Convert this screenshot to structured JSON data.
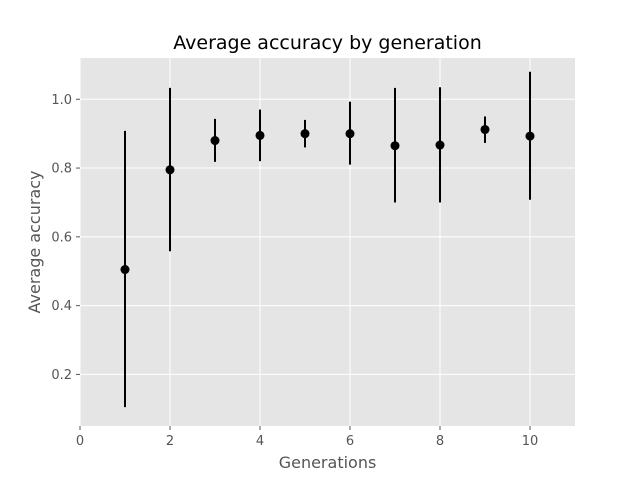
{
  "chart_data": {
    "type": "scatter",
    "title": "Average accuracy by generation",
    "xlabel": "Generations",
    "ylabel": "Average accuracy",
    "xlim": [
      0,
      11
    ],
    "ylim": [
      0.05,
      1.12
    ],
    "xticks": [
      0,
      2,
      4,
      6,
      8,
      10
    ],
    "yticks": [
      0.2,
      0.4,
      0.6,
      0.8,
      1.0
    ],
    "xtick_labels": [
      "0",
      "2",
      "4",
      "6",
      "8",
      "10"
    ],
    "ytick_labels": [
      "0.2",
      "0.4",
      "0.6",
      "0.8",
      "1.0"
    ],
    "grid": true,
    "series": [
      {
        "x": [
          1,
          2,
          3,
          4,
          5,
          6,
          7,
          8,
          9,
          10
        ],
        "y": [
          0.505,
          0.795,
          0.88,
          0.895,
          0.9,
          0.9,
          0.865,
          0.867,
          0.912,
          0.893
        ],
        "yerr_low": [
          0.105,
          0.558,
          0.818,
          0.82,
          0.86,
          0.81,
          0.7,
          0.7,
          0.873,
          0.708
        ],
        "yerr_high": [
          0.908,
          1.033,
          0.943,
          0.97,
          0.94,
          0.993,
          1.033,
          1.035,
          0.95,
          1.08
        ]
      }
    ]
  },
  "colors": {
    "plot_background": "#e5e5e5",
    "grid": "#ffffff",
    "marker": "#000000",
    "errorbar": "#000000"
  }
}
